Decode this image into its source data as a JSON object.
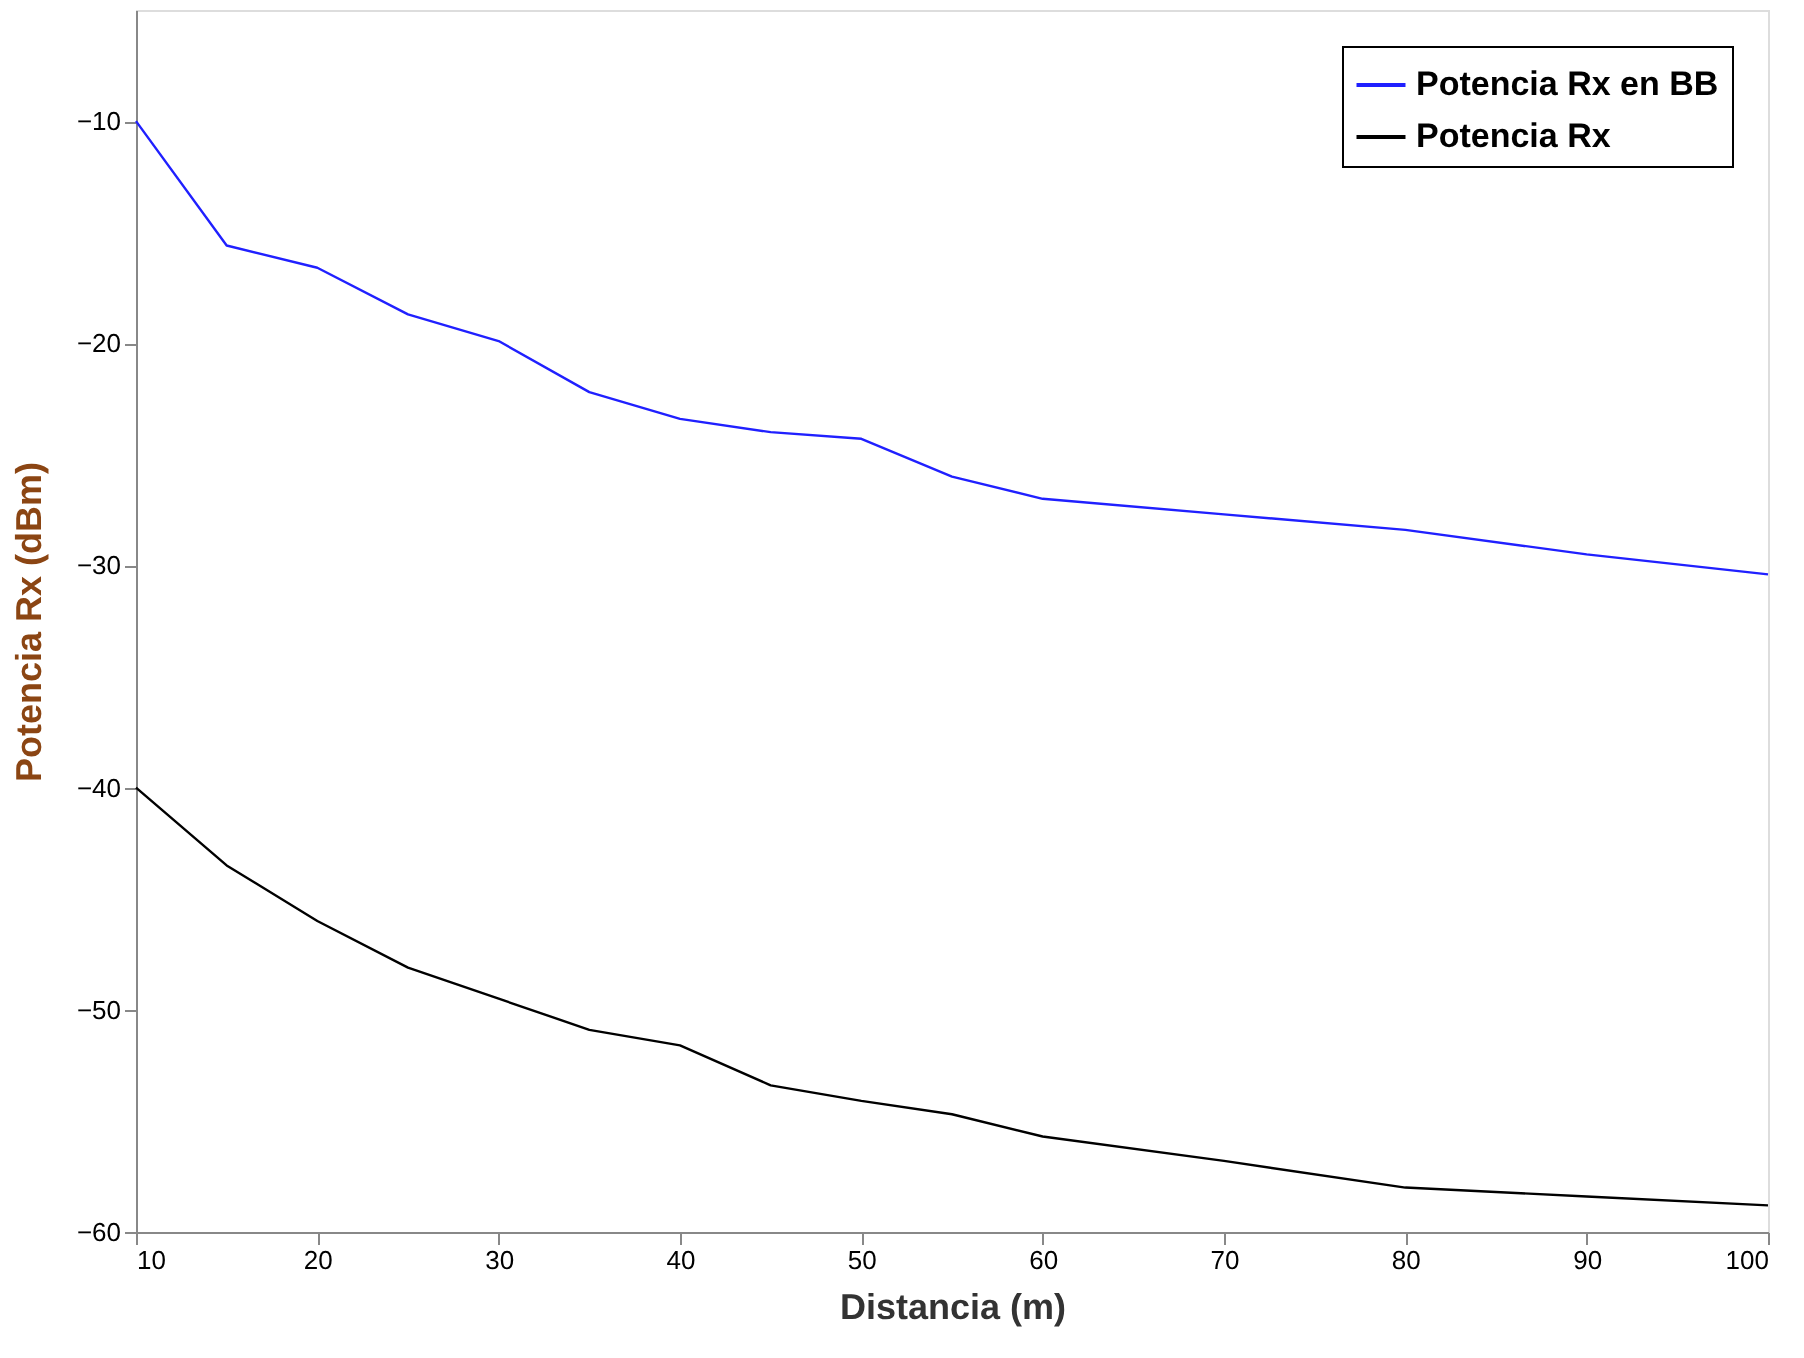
{
  "chart_data": {
    "type": "line",
    "xlabel": "Distancia (m)",
    "ylabel": "Potencia Rx (dBm)",
    "x": [
      10,
      15,
      20,
      25,
      30,
      35,
      40,
      45,
      50,
      55,
      60,
      70,
      80,
      90,
      100
    ],
    "series": [
      {
        "name": "Potencia Rx en BB",
        "color": "#2020ff",
        "values": [
          -10,
          -15.6,
          -16.6,
          -18.7,
          -19.9,
          -22.2,
          -23.4,
          -24.0,
          -24.3,
          -26.0,
          -27.0,
          -27.7,
          -28.4,
          -29.5,
          -30.4
        ]
      },
      {
        "name": "Potencia Rx",
        "color": "#000000",
        "values": [
          -40.0,
          -43.5,
          -46.0,
          -48.1,
          -49.5,
          -50.9,
          -51.6,
          -53.4,
          -54.1,
          -54.7,
          -55.7,
          -56.8,
          -58.0,
          -58.4,
          -58.8
        ]
      }
    ],
    "xlim": [
      10,
      100
    ],
    "xticks": [
      10,
      20,
      30,
      40,
      50,
      60,
      70,
      80,
      90,
      100
    ],
    "ylim": [
      -60,
      -5
    ],
    "yticks": [
      -60,
      -50,
      -40,
      -30,
      -20,
      -10
    ],
    "grid": false,
    "legend": "top right",
    "marker": "none",
    "line_style": "solid"
  }
}
